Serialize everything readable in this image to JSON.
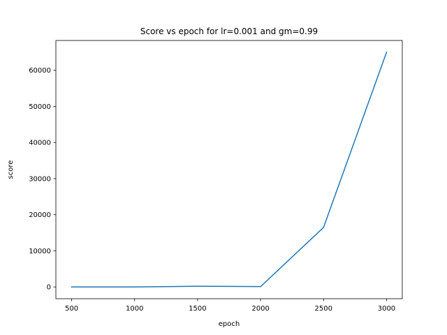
{
  "chart_data": {
    "type": "line",
    "title": "Score vs epoch for lr=0.001 and gm=0.99",
    "xlabel": "epoch",
    "ylabel": "score",
    "x": [
      500,
      1000,
      1500,
      2000,
      2500,
      3000
    ],
    "series": [
      {
        "values": [
          0,
          0,
          200,
          100,
          16500,
          65000
        ],
        "color": "#1f77b4"
      }
    ],
    "xticks": [
      500,
      1000,
      1500,
      2000,
      2500,
      3000
    ],
    "yticks": [
      0,
      10000,
      20000,
      30000,
      40000,
      50000,
      60000
    ],
    "xlim": [
      375,
      3125
    ],
    "ylim": [
      -3250,
      68250
    ],
    "grid": false,
    "legend": false
  }
}
